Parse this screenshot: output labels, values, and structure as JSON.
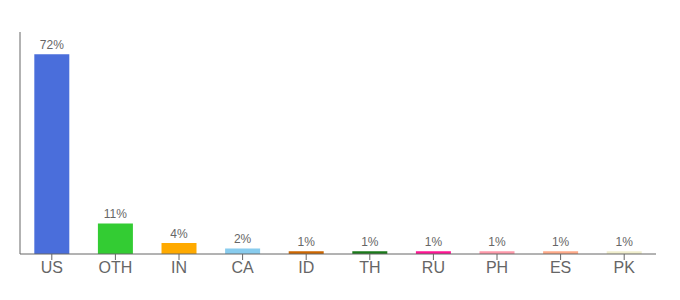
{
  "chart_data": {
    "type": "bar",
    "categories": [
      "US",
      "OTH",
      "IN",
      "CA",
      "ID",
      "TH",
      "RU",
      "PH",
      "ES",
      "PK"
    ],
    "values": [
      72,
      11,
      4,
      2,
      1,
      1,
      1,
      1,
      1,
      1
    ],
    "value_labels": [
      "72%",
      "11%",
      "4%",
      "2%",
      "1%",
      "1%",
      "1%",
      "1%",
      "1%",
      "1%"
    ],
    "data_labels": true,
    "colors": [
      "#4a6edb",
      "#33cc33",
      "#ffaa00",
      "#88ccee",
      "#cc6600",
      "#1a7a1a",
      "#ff1493",
      "#ff99aa",
      "#ffaa88",
      "#f0eecc"
    ],
    "ylim": [
      0,
      80
    ],
    "grid": false,
    "tick_labels": "x"
  }
}
